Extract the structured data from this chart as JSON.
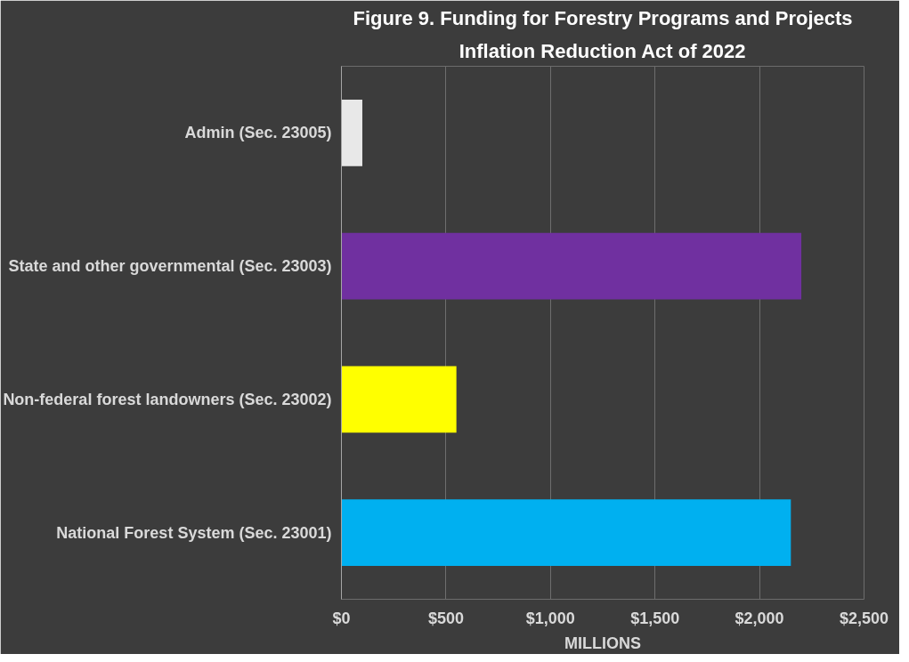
{
  "chart_data": {
    "type": "bar",
    "orientation": "horizontal",
    "title": "Figure 9. Funding for Forestry Programs and Projects",
    "subtitle": "Inflation Reduction Act of 2022",
    "xlabel": "MILLIONS",
    "categories": [
      "Admin (Sec. 23005)",
      "State and other governmental (Sec. 23003)",
      "Non-federal forest landowners (Sec. 23002)",
      "National Forest System (Sec. 23001)"
    ],
    "values": [
      100,
      2200,
      550,
      2150
    ],
    "colors": [
      "#e8e8e8",
      "#7030a0",
      "#ffff00",
      "#00b0f0"
    ],
    "xlim": [
      0,
      2500
    ],
    "xticks": [
      {
        "value": 0,
        "label": "$0"
      },
      {
        "value": 500,
        "label": "$500"
      },
      {
        "value": 1000,
        "label": "$1,000"
      },
      {
        "value": 1500,
        "label": "$1,500"
      },
      {
        "value": 2000,
        "label": "$2,000"
      },
      {
        "value": 2500,
        "label": "$2,500"
      }
    ],
    "grid": "x"
  }
}
